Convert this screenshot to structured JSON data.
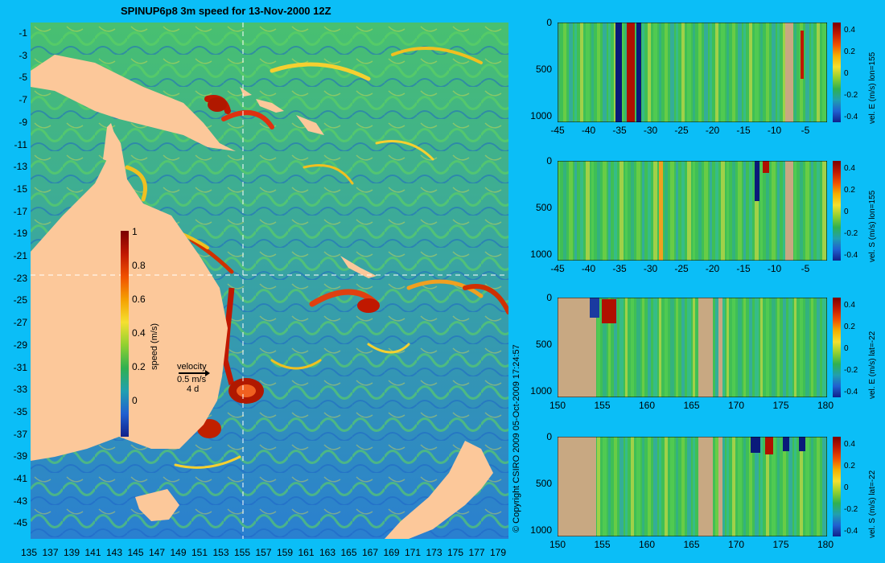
{
  "map": {
    "title": "SPINUP6p8 3m speed for 13-Nov-2000 12Z",
    "lat_ticks": [
      "-1",
      "-3",
      "-5",
      "-7",
      "-9",
      "-11",
      "-13",
      "-15",
      "-17",
      "-19",
      "-21",
      "-23",
      "-25",
      "-27",
      "-29",
      "-31",
      "-33",
      "-35",
      "-37",
      "-39",
      "-41",
      "-43",
      "-45"
    ],
    "lon_ticks": [
      "135",
      "137",
      "139",
      "141",
      "143",
      "145",
      "147",
      "149",
      "151",
      "153",
      "155",
      "157",
      "159",
      "161",
      "163",
      "165",
      "167",
      "169",
      "171",
      "173",
      "175",
      "177",
      "179"
    ],
    "colorbar": {
      "ticks": [
        "1",
        "0.8",
        "0.6",
        "0.4",
        "0.2",
        "0"
      ],
      "label": "speed (m/s)"
    },
    "velocity_legend": {
      "title": "velocity",
      "scale": "0.5 m/s",
      "time": "4 d"
    },
    "copyright": "© Copyright CSIRO 2009   05-Oct-2009 17:24:57",
    "colors": {
      "background": "#0bbef7",
      "land": "#fcc89a",
      "ocean_low": "#1f78d0",
      "ocean_mid": "#3fbf60",
      "ocean_high": "#c21a00"
    }
  },
  "sections": [
    {
      "id": "lon155-E",
      "y_ticks": [
        "0",
        "500",
        "1000"
      ],
      "x_ticks": [
        "-45",
        "-40",
        "-35",
        "-30",
        "-25",
        "-20",
        "-15",
        "-10",
        "-5"
      ],
      "cb_ticks": [
        "0.4",
        "0.2",
        "0",
        "-0.2",
        "-0.4"
      ],
      "label": "vel. E (m/s)  lon=155"
    },
    {
      "id": "lon155-S",
      "y_ticks": [
        "0",
        "500",
        "1000"
      ],
      "x_ticks": [
        "-45",
        "-40",
        "-35",
        "-30",
        "-25",
        "-20",
        "-15",
        "-10",
        "-5"
      ],
      "cb_ticks": [
        "0.4",
        "0.2",
        "0",
        "-0.2",
        "-0.4"
      ],
      "label": "vel. S (m/s)  lon=155"
    },
    {
      "id": "lat-22-E",
      "y_ticks": [
        "0",
        "500",
        "1000"
      ],
      "x_ticks": [
        "150",
        "155",
        "160",
        "165",
        "170",
        "175",
        "180"
      ],
      "cb_ticks": [
        "0.4",
        "0.2",
        "0",
        "-0.2",
        "-0.4"
      ],
      "label": "vel. E (m/s)  lat=-22"
    },
    {
      "id": "lat-22-S",
      "y_ticks": [
        "0",
        "500",
        "1000"
      ],
      "x_ticks": [
        "150",
        "155",
        "160",
        "165",
        "170",
        "175",
        "180"
      ],
      "cb_ticks": [
        "0.4",
        "0.2",
        "0",
        "-0.2",
        "-0.4"
      ],
      "label": "vel. S (m/s)  lat=-22"
    }
  ]
}
